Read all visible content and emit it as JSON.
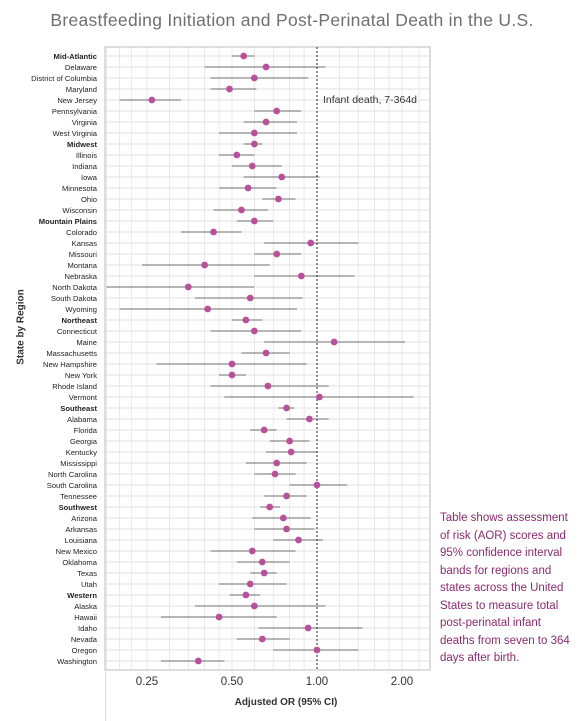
{
  "chart_data": {
    "type": "scatter",
    "title": "Breastfeeding Initiation and Post-Perinatal Death in the U.S.",
    "xlabel": "Adjusted OR (95% CI)",
    "ylabel": "State by Region",
    "x_scale": "log2",
    "xlim": [
      0.16,
      2.7
    ],
    "x_ticks": [
      0.25,
      0.5,
      1.0,
      2.0
    ],
    "x_tick_labels": [
      "0.25",
      "0.50",
      "1.00",
      "2.00"
    ],
    "reference_line": {
      "x": 1.0,
      "style": "dotted",
      "label": "Infant death, 7-364d"
    },
    "grid": true,
    "point_color": "#b9509a",
    "rows": [
      {
        "label": "Mid-Atlantic",
        "bold": true,
        "or": 0.55,
        "lo": 0.5,
        "hi": 0.6
      },
      {
        "label": "Delaware",
        "bold": false,
        "or": 0.66,
        "lo": 0.4,
        "hi": 1.07
      },
      {
        "label": "District of Columbia",
        "bold": false,
        "or": 0.6,
        "lo": 0.42,
        "hi": 0.93
      },
      {
        "label": "Maryland",
        "bold": false,
        "or": 0.49,
        "lo": 0.42,
        "hi": 0.61
      },
      {
        "label": "New Jersey",
        "bold": false,
        "or": 0.26,
        "lo": 0.2,
        "hi": 0.33
      },
      {
        "label": "Pennsylvania",
        "bold": false,
        "or": 0.72,
        "lo": 0.6,
        "hi": 0.88
      },
      {
        "label": "Virginia",
        "bold": false,
        "or": 0.66,
        "lo": 0.55,
        "hi": 0.85
      },
      {
        "label": "West Virginia",
        "bold": false,
        "or": 0.6,
        "lo": 0.45,
        "hi": 0.85
      },
      {
        "label": "Midwest",
        "bold": true,
        "or": 0.6,
        "lo": 0.55,
        "hi": 0.64
      },
      {
        "label": "Illinois",
        "bold": false,
        "or": 0.52,
        "lo": 0.45,
        "hi": 0.6
      },
      {
        "label": "Indiana",
        "bold": false,
        "or": 0.59,
        "lo": 0.5,
        "hi": 0.75
      },
      {
        "label": "Iowa",
        "bold": false,
        "or": 0.75,
        "lo": 0.55,
        "hi": 1.02
      },
      {
        "label": "Minnesota",
        "bold": false,
        "or": 0.57,
        "lo": 0.45,
        "hi": 0.72
      },
      {
        "label": "Ohio",
        "bold": false,
        "or": 0.73,
        "lo": 0.64,
        "hi": 0.84
      },
      {
        "label": "Wisconsin",
        "bold": false,
        "or": 0.54,
        "lo": 0.43,
        "hi": 0.67
      },
      {
        "label": "Mountain Plains",
        "bold": true,
        "or": 0.6,
        "lo": 0.52,
        "hi": 0.7
      },
      {
        "label": "Colorado",
        "bold": false,
        "or": 0.43,
        "lo": 0.33,
        "hi": 0.54
      },
      {
        "label": "Kansas",
        "bold": false,
        "or": 0.95,
        "lo": 0.65,
        "hi": 1.4
      },
      {
        "label": "Missouri",
        "bold": false,
        "or": 0.72,
        "lo": 0.6,
        "hi": 0.88
      },
      {
        "label": "Montana",
        "bold": false,
        "or": 0.4,
        "lo": 0.24,
        "hi": 0.68
      },
      {
        "label": "Nebraska",
        "bold": false,
        "or": 0.88,
        "lo": 0.6,
        "hi": 1.36
      },
      {
        "label": "North Dakota",
        "bold": false,
        "or": 0.35,
        "lo": 0.18,
        "hi": 0.6
      },
      {
        "label": "South Dakota",
        "bold": false,
        "or": 0.58,
        "lo": 0.37,
        "hi": 0.89
      },
      {
        "label": "Wyoming",
        "bold": false,
        "or": 0.41,
        "lo": 0.2,
        "hi": 0.85
      },
      {
        "label": "Northeast",
        "bold": true,
        "or": 0.56,
        "lo": 0.5,
        "hi": 0.64
      },
      {
        "label": "Connecticut",
        "bold": false,
        "or": 0.6,
        "lo": 0.42,
        "hi": 0.88
      },
      {
        "label": "Maine",
        "bold": false,
        "or": 1.15,
        "lo": 0.65,
        "hi": 2.05
      },
      {
        "label": "Massachusetts",
        "bold": false,
        "or": 0.66,
        "lo": 0.54,
        "hi": 0.8
      },
      {
        "label": "New Hampshire",
        "bold": false,
        "or": 0.5,
        "lo": 0.27,
        "hi": 0.92
      },
      {
        "label": "New York",
        "bold": false,
        "or": 0.5,
        "lo": 0.45,
        "hi": 0.56
      },
      {
        "label": "Rhode Island",
        "bold": false,
        "or": 0.67,
        "lo": 0.42,
        "hi": 1.1
      },
      {
        "label": "Vermont",
        "bold": false,
        "or": 1.02,
        "lo": 0.47,
        "hi": 2.2
      },
      {
        "label": "Southeast",
        "bold": true,
        "or": 0.78,
        "lo": 0.73,
        "hi": 0.83
      },
      {
        "label": "Alabama",
        "bold": false,
        "or": 0.94,
        "lo": 0.78,
        "hi": 1.1
      },
      {
        "label": "Florida",
        "bold": false,
        "or": 0.65,
        "lo": 0.58,
        "hi": 0.72
      },
      {
        "label": "Georgia",
        "bold": false,
        "or": 0.8,
        "lo": 0.68,
        "hi": 0.94
      },
      {
        "label": "Kentucky",
        "bold": false,
        "or": 0.81,
        "lo": 0.66,
        "hi": 1.0
      },
      {
        "label": "Mississippi",
        "bold": false,
        "or": 0.72,
        "lo": 0.56,
        "hi": 0.92
      },
      {
        "label": "North Carolina",
        "bold": false,
        "or": 0.71,
        "lo": 0.6,
        "hi": 0.84
      },
      {
        "label": "South Carolina",
        "bold": false,
        "or": 1.0,
        "lo": 0.8,
        "hi": 1.28
      },
      {
        "label": "Tennessee",
        "bold": false,
        "or": 0.78,
        "lo": 0.65,
        "hi": 0.92
      },
      {
        "label": "Southwest",
        "bold": true,
        "or": 0.68,
        "lo": 0.63,
        "hi": 0.74
      },
      {
        "label": "Arizona",
        "bold": false,
        "or": 0.76,
        "lo": 0.59,
        "hi": 0.95
      },
      {
        "label": "Arkansas",
        "bold": false,
        "or": 0.78,
        "lo": 0.6,
        "hi": 0.98
      },
      {
        "label": "Louisiana",
        "bold": false,
        "or": 0.86,
        "lo": 0.7,
        "hi": 1.05
      },
      {
        "label": "New Mexico",
        "bold": false,
        "or": 0.59,
        "lo": 0.42,
        "hi": 0.84
      },
      {
        "label": "Oklahoma",
        "bold": false,
        "or": 0.64,
        "lo": 0.52,
        "hi": 0.8
      },
      {
        "label": "Texas",
        "bold": false,
        "or": 0.65,
        "lo": 0.58,
        "hi": 0.72
      },
      {
        "label": "Utah",
        "bold": false,
        "or": 0.58,
        "lo": 0.45,
        "hi": 0.78
      },
      {
        "label": "Western",
        "bold": true,
        "or": 0.56,
        "lo": 0.49,
        "hi": 0.63
      },
      {
        "label": "Alaska",
        "bold": false,
        "or": 0.6,
        "lo": 0.37,
        "hi": 1.07
      },
      {
        "label": "Hawaii",
        "bold": false,
        "or": 0.45,
        "lo": 0.28,
        "hi": 0.72
      },
      {
        "label": "Idaho",
        "bold": false,
        "or": 0.93,
        "lo": 0.62,
        "hi": 1.45
      },
      {
        "label": "Nevada",
        "bold": false,
        "or": 0.64,
        "lo": 0.52,
        "hi": 0.8
      },
      {
        "label": "Oregon",
        "bold": false,
        "or": 1.0,
        "lo": 0.7,
        "hi": 1.4
      },
      {
        "label": "Washington",
        "bold": false,
        "or": 0.38,
        "lo": 0.28,
        "hi": 0.47
      }
    ]
  },
  "note": "Table shows assessment of risk (AOR) scores and 95% confidence interval bands for regions and states across the United States to measure total post-perinatal infant deaths from seven to 364 days after birth."
}
